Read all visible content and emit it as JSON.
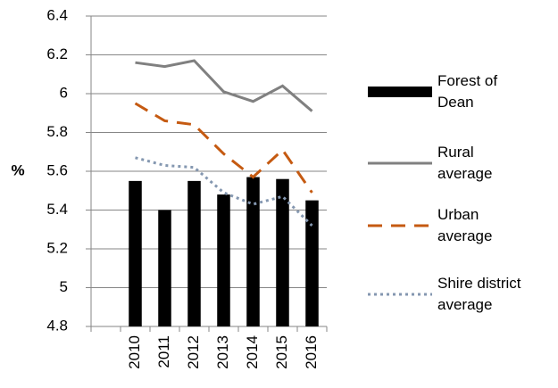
{
  "chart_data": {
    "type": "bar-line",
    "y_label": "%",
    "categories": [
      null,
      "2010",
      "2011",
      "2012",
      "2013",
      "2014",
      "2015",
      "2016"
    ],
    "ylim": [
      4.8,
      6.4
    ],
    "yticks": [
      4.8,
      5,
      5.2,
      5.4,
      5.6,
      5.8,
      6,
      6.2,
      6.4
    ],
    "grid": true,
    "series": [
      {
        "name": "Forest of Dean",
        "type": "bar",
        "color": "#000000",
        "values": [
          null,
          5.55,
          5.4,
          5.55,
          5.48,
          5.57,
          5.56,
          5.45
        ]
      },
      {
        "name": "Rural average",
        "type": "line",
        "style": "solid",
        "color": "#808080",
        "values": [
          null,
          6.16,
          6.14,
          6.17,
          6.01,
          5.96,
          6.04,
          5.91
        ]
      },
      {
        "name": "Urban average",
        "type": "line",
        "style": "dashed",
        "color": "#c55a11",
        "values": [
          null,
          5.95,
          5.86,
          5.84,
          5.69,
          5.57,
          5.71,
          5.49
        ]
      },
      {
        "name": "Shire district average",
        "type": "line",
        "style": "dotted",
        "color": "#8497b0",
        "values": [
          null,
          5.67,
          5.63,
          5.62,
          5.49,
          5.43,
          5.47,
          5.32
        ]
      }
    ]
  }
}
